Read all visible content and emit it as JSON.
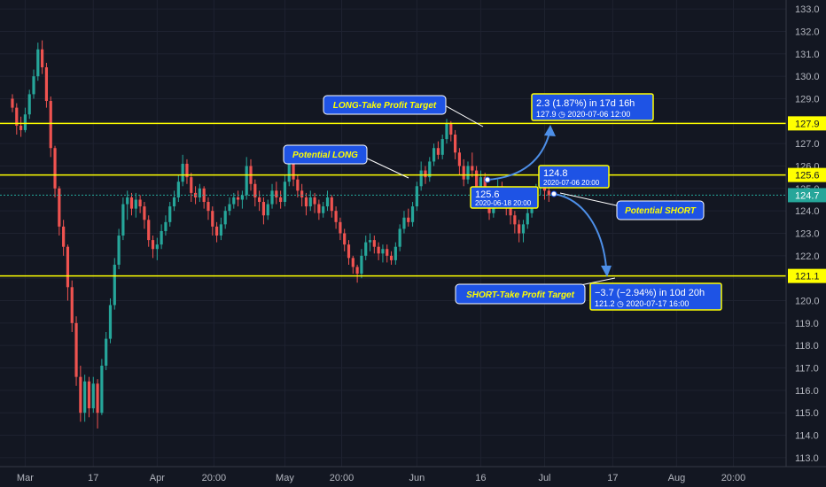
{
  "chart_data": {
    "type": "candlestick",
    "y_axis": {
      "range": [
        112.6,
        133.4
      ],
      "ticks": [
        "113.0",
        "114.0",
        "115.0",
        "116.0",
        "117.0",
        "118.0",
        "119.0",
        "120.0",
        "121.0",
        "122.0",
        "123.0",
        "124.0",
        "125.0",
        "126.0",
        "127.0",
        "128.0",
        "129.0",
        "130.0",
        "131.0",
        "132.0",
        "133.0"
      ],
      "tick_values": [
        113,
        114,
        115,
        116,
        117,
        118,
        119,
        120,
        121,
        122,
        123,
        124,
        125,
        126,
        127,
        128,
        129,
        130,
        131,
        132,
        133
      ]
    },
    "x_axis": {
      "labels": [
        {
          "text": "Mar",
          "date": "2020-03-01"
        },
        {
          "text": "17",
          "date": "2020-03-17"
        },
        {
          "text": "Apr",
          "date": "2020-04-01"
        },
        {
          "text": "20:00",
          "date": "2020-04-14T20:00"
        },
        {
          "text": "May",
          "date": "2020-05-01"
        },
        {
          "text": "20:00",
          "date": "2020-05-14T20:00"
        },
        {
          "text": "Jun",
          "date": "2020-06-01"
        },
        {
          "text": "16",
          "date": "2020-06-16"
        },
        {
          "text": "Jul",
          "date": "2020-07-01"
        },
        {
          "text": "17",
          "date": "2020-07-17"
        },
        {
          "text": "Aug",
          "date": "2020-08-01"
        },
        {
          "text": "20:00",
          "date": "2020-08-14T20:00"
        }
      ]
    },
    "current_price": {
      "label": "124.7",
      "value": 124.7
    },
    "colors": {
      "up": "#26a69a",
      "down": "#ef5350",
      "level_line": "#ffff00",
      "arrow": "#4d8fe8",
      "box_fill": "#1e53e5",
      "box_border": "#ffff00",
      "background": "#131722",
      "grid": "#1e2230"
    },
    "series_ohlc": [
      [
        "2020-02-27",
        129.0,
        129.2,
        128.4,
        128.6
      ],
      [
        "2020-02-28",
        128.6,
        128.8,
        127.4,
        127.8
      ],
      [
        "2020-02-29",
        127.8,
        128.2,
        127.3,
        127.6
      ],
      [
        "2020-03-01",
        127.6,
        128.6,
        127.5,
        128.3
      ],
      [
        "2020-03-02",
        128.3,
        129.4,
        128.1,
        129.2
      ],
      [
        "2020-03-03",
        129.2,
        130.3,
        129.0,
        130.0
      ],
      [
        "2020-03-04",
        130.0,
        131.5,
        129.8,
        131.2
      ],
      [
        "2020-03-05",
        131.2,
        131.6,
        130.1,
        130.4
      ],
      [
        "2020-03-06",
        130.4,
        130.6,
        128.6,
        128.9
      ],
      [
        "2020-03-07",
        128.9,
        129.1,
        126.4,
        126.8
      ],
      [
        "2020-03-08",
        126.8,
        126.9,
        124.6,
        125.0
      ],
      [
        "2020-03-09",
        125.0,
        125.1,
        122.9,
        123.3
      ],
      [
        "2020-03-10",
        123.3,
        123.6,
        122.0,
        122.4
      ],
      [
        "2020-03-11",
        122.4,
        122.5,
        120.0,
        120.6
      ],
      [
        "2020-03-12",
        120.6,
        120.9,
        118.6,
        119.0
      ],
      [
        "2020-03-13",
        119.0,
        119.3,
        116.2,
        116.6
      ],
      [
        "2020-03-14",
        116.6,
        117.1,
        114.6,
        115.0
      ],
      [
        "2020-03-15",
        115.0,
        116.7,
        114.6,
        116.4
      ],
      [
        "2020-03-16",
        116.4,
        116.6,
        114.8,
        115.2
      ],
      [
        "2020-03-17",
        115.2,
        116.6,
        115.0,
        116.3
      ],
      [
        "2020-03-18",
        116.3,
        116.5,
        114.3,
        115.0
      ],
      [
        "2020-03-19",
        115.0,
        117.4,
        114.9,
        117.1
      ],
      [
        "2020-03-20",
        117.1,
        118.6,
        116.9,
        118.3
      ],
      [
        "2020-03-21",
        118.3,
        120.1,
        118.1,
        119.8
      ],
      [
        "2020-03-22",
        119.8,
        121.9,
        119.6,
        121.6
      ],
      [
        "2020-03-23",
        121.6,
        123.2,
        121.4,
        122.9
      ],
      [
        "2020-03-24",
        122.9,
        124.6,
        122.7,
        124.3
      ],
      [
        "2020-03-25",
        124.3,
        124.9,
        123.6,
        124.6
      ],
      [
        "2020-03-26",
        124.6,
        124.8,
        123.8,
        124.1
      ],
      [
        "2020-03-27",
        124.1,
        124.8,
        123.7,
        124.5
      ],
      [
        "2020-03-28",
        124.5,
        124.7,
        123.9,
        124.2
      ],
      [
        "2020-03-29",
        124.2,
        124.4,
        123.2,
        123.6
      ],
      [
        "2020-03-30",
        123.6,
        123.8,
        122.4,
        122.7
      ],
      [
        "2020-03-31",
        122.7,
        122.9,
        121.9,
        122.3
      ],
      [
        "2020-04-01",
        122.3,
        122.8,
        121.8,
        122.5
      ],
      [
        "2020-04-02",
        122.5,
        123.4,
        122.3,
        123.1
      ],
      [
        "2020-04-03",
        123.1,
        123.8,
        122.9,
        123.5
      ],
      [
        "2020-04-04",
        123.5,
        124.4,
        123.3,
        124.2
      ],
      [
        "2020-04-05",
        124.2,
        124.9,
        124.0,
        124.6
      ],
      [
        "2020-04-06",
        124.6,
        125.6,
        124.4,
        125.3
      ],
      [
        "2020-04-07",
        125.3,
        126.5,
        125.1,
        126.1
      ],
      [
        "2020-04-08",
        126.1,
        126.3,
        125.2,
        125.5
      ],
      [
        "2020-04-09",
        125.5,
        125.7,
        124.4,
        124.8
      ],
      [
        "2020-04-10",
        124.8,
        125.1,
        124.3,
        124.6
      ],
      [
        "2020-04-11",
        124.6,
        125.2,
        124.4,
        125.0
      ],
      [
        "2020-04-12",
        125.0,
        125.1,
        124.1,
        124.4
      ],
      [
        "2020-04-13",
        124.4,
        124.6,
        123.6,
        124.0
      ],
      [
        "2020-04-14",
        124.0,
        124.2,
        122.9,
        123.3
      ],
      [
        "2020-04-15",
        123.3,
        123.5,
        122.6,
        122.9
      ],
      [
        "2020-04-16",
        122.9,
        123.7,
        122.7,
        123.4
      ],
      [
        "2020-04-17",
        123.4,
        124.2,
        123.2,
        124.0
      ],
      [
        "2020-04-18",
        124.0,
        124.6,
        123.8,
        124.3
      ],
      [
        "2020-04-19",
        124.3,
        124.8,
        124.1,
        124.6
      ],
      [
        "2020-04-20",
        124.6,
        124.9,
        124.2,
        124.5
      ],
      [
        "2020-04-21",
        124.5,
        124.9,
        124.1,
        124.7
      ],
      [
        "2020-04-22",
        124.7,
        126.4,
        124.5,
        126.0
      ],
      [
        "2020-04-23",
        126.0,
        126.3,
        124.9,
        125.2
      ],
      [
        "2020-04-24",
        125.2,
        125.4,
        124.2,
        124.6
      ],
      [
        "2020-04-25",
        124.6,
        124.9,
        124.0,
        124.4
      ],
      [
        "2020-04-26",
        124.4,
        124.6,
        123.4,
        123.8
      ],
      [
        "2020-04-27",
        123.8,
        124.5,
        123.6,
        124.3
      ],
      [
        "2020-04-28",
        124.3,
        125.2,
        124.1,
        124.9
      ],
      [
        "2020-04-29",
        124.9,
        125.3,
        124.3,
        124.6
      ],
      [
        "2020-04-30",
        124.6,
        124.9,
        124.1,
        124.4
      ],
      [
        "2020-05-01",
        124.4,
        125.6,
        124.2,
        125.3
      ],
      [
        "2020-05-02",
        125.3,
        126.7,
        125.1,
        126.4
      ],
      [
        "2020-05-03",
        126.4,
        126.6,
        125.1,
        125.4
      ],
      [
        "2020-05-04",
        125.4,
        125.6,
        124.6,
        124.9
      ],
      [
        "2020-05-05",
        124.9,
        125.2,
        124.2,
        124.6
      ],
      [
        "2020-05-06",
        124.6,
        124.8,
        123.8,
        124.2
      ],
      [
        "2020-05-07",
        124.2,
        124.9,
        124.0,
        124.6
      ],
      [
        "2020-05-08",
        124.6,
        124.8,
        123.9,
        124.3
      ],
      [
        "2020-05-09",
        124.3,
        124.5,
        123.6,
        123.9
      ],
      [
        "2020-05-10",
        123.9,
        124.4,
        123.7,
        124.2
      ],
      [
        "2020-05-11",
        124.2,
        124.9,
        124.0,
        124.6
      ],
      [
        "2020-05-12",
        124.6,
        124.7,
        123.7,
        124.0
      ],
      [
        "2020-05-13",
        124.0,
        124.2,
        123.2,
        123.5
      ],
      [
        "2020-05-14",
        123.5,
        123.7,
        122.7,
        123.0
      ],
      [
        "2020-05-15",
        123.0,
        123.2,
        122.2,
        122.5
      ],
      [
        "2020-05-16",
        122.5,
        122.7,
        121.6,
        121.9
      ],
      [
        "2020-05-17",
        121.9,
        122.0,
        121.2,
        121.5
      ],
      [
        "2020-05-18",
        121.5,
        121.6,
        120.8,
        121.2
      ],
      [
        "2020-05-19",
        121.2,
        122.3,
        121.0,
        122.0
      ],
      [
        "2020-05-20",
        122.0,
        122.9,
        121.8,
        122.6
      ],
      [
        "2020-05-21",
        122.6,
        123.0,
        122.2,
        122.7
      ],
      [
        "2020-05-22",
        122.7,
        122.9,
        122.1,
        122.4
      ],
      [
        "2020-05-23",
        122.4,
        122.6,
        121.8,
        122.1
      ],
      [
        "2020-05-24",
        122.1,
        122.5,
        121.7,
        122.3
      ],
      [
        "2020-05-25",
        122.3,
        122.5,
        121.7,
        122.0
      ],
      [
        "2020-05-26",
        122.0,
        122.2,
        121.6,
        121.8
      ],
      [
        "2020-05-27",
        121.8,
        122.6,
        121.6,
        122.4
      ],
      [
        "2020-05-28",
        122.4,
        123.4,
        122.2,
        123.2
      ],
      [
        "2020-05-29",
        123.2,
        124.0,
        123.0,
        123.7
      ],
      [
        "2020-05-30",
        123.7,
        124.1,
        123.3,
        123.5
      ],
      [
        "2020-05-31",
        123.5,
        124.4,
        123.3,
        124.2
      ],
      [
        "2020-06-01",
        124.2,
        125.3,
        124.0,
        125.1
      ],
      [
        "2020-06-02",
        125.1,
        126.2,
        124.9,
        125.8
      ],
      [
        "2020-06-03",
        125.8,
        126.0,
        125.2,
        125.5
      ],
      [
        "2020-06-04",
        125.5,
        126.4,
        125.3,
        126.2
      ],
      [
        "2020-06-05",
        126.2,
        127.0,
        126.0,
        126.8
      ],
      [
        "2020-06-06",
        126.8,
        127.1,
        126.3,
        126.5
      ],
      [
        "2020-06-07",
        126.5,
        127.4,
        126.3,
        127.2
      ],
      [
        "2020-06-08",
        127.2,
        128.1,
        127.0,
        127.9
      ],
      [
        "2020-06-09",
        127.9,
        128.0,
        127.1,
        127.4
      ],
      [
        "2020-06-10",
        127.4,
        127.6,
        126.3,
        126.6
      ],
      [
        "2020-06-11",
        126.6,
        126.8,
        125.6,
        126.0
      ],
      [
        "2020-06-12",
        126.0,
        126.3,
        125.1,
        125.4
      ],
      [
        "2020-06-13",
        125.4,
        126.2,
        125.2,
        126.0
      ],
      [
        "2020-06-14",
        126.0,
        126.6,
        125.5,
        125.8
      ],
      [
        "2020-06-15",
        125.8,
        126.0,
        124.6,
        125.0
      ],
      [
        "2020-06-16",
        125.0,
        125.8,
        124.8,
        125.5
      ],
      [
        "2020-06-17",
        125.5,
        125.7,
        124.3,
        124.6
      ],
      [
        "2020-06-18",
        124.6,
        124.8,
        123.6,
        123.9
      ],
      [
        "2020-06-19",
        123.9,
        124.7,
        123.7,
        124.4
      ],
      [
        "2020-06-20",
        124.4,
        125.4,
        124.2,
        125.1
      ],
      [
        "2020-06-21",
        125.1,
        125.3,
        124.2,
        124.6
      ],
      [
        "2020-06-22",
        124.6,
        124.8,
        123.8,
        124.2
      ],
      [
        "2020-06-23",
        124.2,
        124.5,
        123.4,
        123.8
      ],
      [
        "2020-06-24",
        123.8,
        124.0,
        123.0,
        123.4
      ],
      [
        "2020-06-25",
        123.4,
        123.6,
        122.6,
        123.0
      ],
      [
        "2020-06-26",
        123.0,
        123.6,
        122.6,
        123.4
      ],
      [
        "2020-06-27",
        123.4,
        124.1,
        123.2,
        123.9
      ],
      [
        "2020-06-28",
        123.9,
        124.6,
        123.7,
        124.4
      ],
      [
        "2020-06-29",
        124.4,
        125.2,
        124.2,
        125.0
      ],
      [
        "2020-06-30",
        125.0,
        125.6,
        124.7,
        125.3
      ],
      [
        "2020-07-01",
        125.3,
        125.4,
        124.5,
        124.9
      ],
      [
        "2020-07-02",
        124.9,
        125.2,
        124.4,
        124.7
      ]
    ],
    "levels": [
      {
        "label": "127.9",
        "value": 127.9
      },
      {
        "label": "125.6",
        "value": 125.6
      },
      {
        "label": "121.1",
        "value": 121.1
      }
    ]
  },
  "annotations": {
    "long_tp_callout": "LONG-Take Profit Target",
    "potential_long_callout": "Potential LONG",
    "potential_short_callout": "Potential SHORT",
    "short_tp_callout": "SHORT-Take Profit Target",
    "long_measure_line1": "2.3 (1.87%) in 17d 16h",
    "long_measure_line2": "127.9 ◷ 2020-07-06  12:00",
    "short_measure_line1": "−3.7 (−2.94%) in 10d 20h",
    "short_measure_line2": "121.2 ◷ 2020-07-17  16:00",
    "point_a_price": "125.6",
    "point_a_date": "2020-06-18 20:00",
    "point_b_price": "124.8",
    "point_b_date": "2020-07-06 20:00"
  }
}
